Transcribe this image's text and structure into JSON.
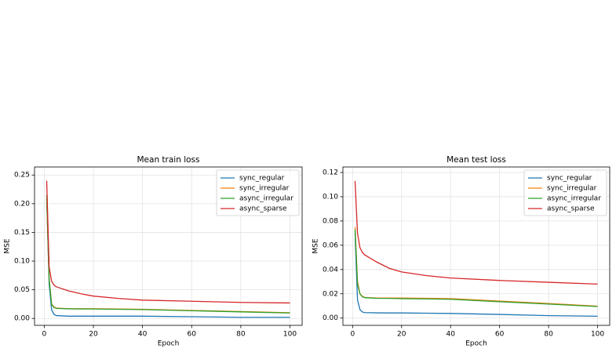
{
  "chart_data": [
    {
      "type": "line",
      "title": "Mean train loss",
      "xlabel": "Epoch",
      "ylabel": "MSE",
      "x": [
        1,
        2,
        3,
        4,
        5,
        10,
        15,
        20,
        30,
        40,
        60,
        80,
        100
      ],
      "series": [
        {
          "name": "sync_regular",
          "color": "#1f77b4",
          "values": [
            0.21,
            0.06,
            0.015,
            0.007,
            0.005,
            0.004,
            0.004,
            0.004,
            0.004,
            0.004,
            0.003,
            0.002,
            0.002
          ]
        },
        {
          "name": "sync_irregular",
          "color": "#ff7f0e",
          "values": [
            0.21,
            0.07,
            0.025,
            0.02,
            0.018,
            0.017,
            0.017,
            0.017,
            0.0165,
            0.016,
            0.014,
            0.012,
            0.01
          ]
        },
        {
          "name": "async_irregular",
          "color": "#2ca02c",
          "values": [
            0.215,
            0.068,
            0.024,
            0.019,
            0.0175,
            0.0168,
            0.0166,
            0.0165,
            0.016,
            0.0155,
            0.0135,
            0.0115,
            0.0095
          ]
        },
        {
          "name": "async_sparse",
          "color": "#d62728",
          "values": [
            0.24,
            0.09,
            0.065,
            0.058,
            0.055,
            0.048,
            0.043,
            0.039,
            0.035,
            0.032,
            0.03,
            0.028,
            0.027
          ]
        }
      ],
      "xlim": [
        -3.95,
        104.95
      ],
      "xticks": [
        0,
        20,
        40,
        60,
        80,
        100
      ],
      "ylim": [
        -0.012,
        0.264
      ],
      "yticks": [
        {
          "value": 0,
          "label": "0.00"
        },
        {
          "value": 0.05,
          "label": "0.05"
        },
        {
          "value": 0.1,
          "label": "0.10"
        },
        {
          "value": 0.15,
          "label": "0.15"
        },
        {
          "value": 0.2,
          "label": "0.20"
        },
        {
          "value": 0.25,
          "label": "0.25"
        }
      ],
      "grid": true,
      "legend": "upper-right"
    },
    {
      "type": "line",
      "title": "Mean test loss",
      "xlabel": "Epoch",
      "ylabel": "MSE",
      "x": [
        1,
        2,
        3,
        4,
        5,
        10,
        15,
        20,
        30,
        40,
        60,
        80,
        100
      ],
      "series": [
        {
          "name": "sync_regular",
          "color": "#1f77b4",
          "values": [
            0.07,
            0.015,
            0.007,
            0.005,
            0.0045,
            0.0043,
            0.0042,
            0.0042,
            0.004,
            0.0038,
            0.003,
            0.002,
            0.0015
          ]
        },
        {
          "name": "sync_irregular",
          "color": "#ff7f0e",
          "values": [
            0.075,
            0.03,
            0.02,
            0.018,
            0.017,
            0.0165,
            0.0165,
            0.0165,
            0.0163,
            0.016,
            0.014,
            0.012,
            0.0098
          ]
        },
        {
          "name": "async_irregular",
          "color": "#2ca02c",
          "values": [
            0.073,
            0.028,
            0.02,
            0.0175,
            0.0168,
            0.0163,
            0.0162,
            0.016,
            0.0158,
            0.0155,
            0.0135,
            0.0115,
            0.0095
          ]
        },
        {
          "name": "async_sparse",
          "color": "#d62728",
          "values": [
            0.113,
            0.07,
            0.058,
            0.054,
            0.052,
            0.046,
            0.041,
            0.038,
            0.035,
            0.033,
            0.031,
            0.0295,
            0.028
          ]
        }
      ],
      "xlim": [
        -3.95,
        104.95
      ],
      "xticks": [
        0,
        20,
        40,
        60,
        80,
        100
      ],
      "ylim": [
        -0.006,
        0.1245
      ],
      "yticks": [
        {
          "value": 0,
          "label": "0.00"
        },
        {
          "value": 0.02,
          "label": "0.02"
        },
        {
          "value": 0.04,
          "label": "0.04"
        },
        {
          "value": 0.06,
          "label": "0.06"
        },
        {
          "value": 0.08,
          "label": "0.08"
        },
        {
          "value": 0.1,
          "label": "0.10"
        },
        {
          "value": 0.12,
          "label": "0.12"
        }
      ],
      "grid": true,
      "legend": "upper-right"
    }
  ]
}
